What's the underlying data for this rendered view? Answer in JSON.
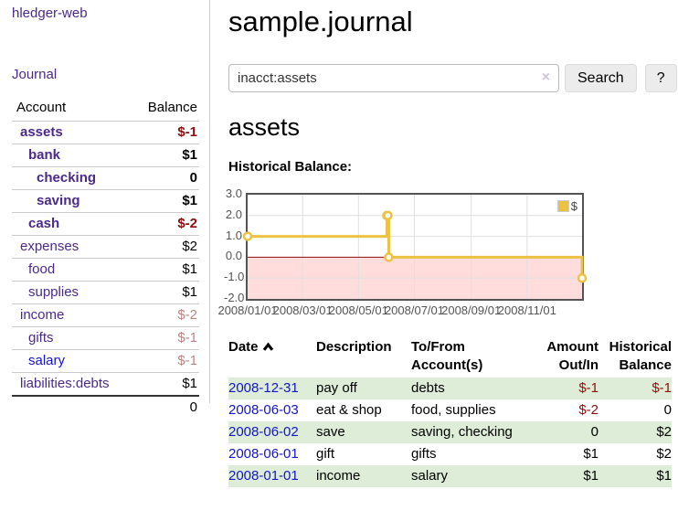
{
  "page": {
    "title": "sample.journal"
  },
  "sidebar": {
    "brand": "hledger-web",
    "journal_link": "Journal",
    "accounts": {
      "headers": {
        "account": "Account",
        "balance": "Balance"
      },
      "rows": [
        {
          "name": "assets",
          "depth": 1,
          "selected": true,
          "balance": "$-1",
          "neg": "strong"
        },
        {
          "name": "bank",
          "depth": 2,
          "selected": true,
          "balance": "$1",
          "neg": "none"
        },
        {
          "name": "checking",
          "depth": 3,
          "selected": true,
          "balance": "0",
          "neg": "none"
        },
        {
          "name": "saving",
          "depth": 3,
          "selected": true,
          "balance": "$1",
          "neg": "none"
        },
        {
          "name": "cash",
          "depth": 2,
          "selected": true,
          "balance": "$-2",
          "neg": "strong"
        },
        {
          "name": "expenses",
          "depth": 1,
          "selected": false,
          "balance": "$2",
          "neg": "none"
        },
        {
          "name": "food",
          "depth": 2,
          "selected": false,
          "balance": "$1",
          "neg": "none"
        },
        {
          "name": "supplies",
          "depth": 2,
          "selected": false,
          "balance": "$1",
          "neg": "none"
        },
        {
          "name": "income",
          "depth": 1,
          "selected": false,
          "balance": "$-2",
          "neg": "faded"
        },
        {
          "name": "gifts",
          "depth": 2,
          "selected": false,
          "balance": "$-1",
          "neg": "faded"
        },
        {
          "name": "salary",
          "depth": 2,
          "selected": false,
          "balance": "$-1",
          "neg": "faded",
          "unvisited": true
        },
        {
          "name": "liabilities:debts",
          "depth": 1,
          "selected": false,
          "balance": "$1",
          "neg": "none"
        }
      ],
      "total": "0"
    }
  },
  "search": {
    "value": "inacct:assets",
    "clear_icon": "×",
    "button": "Search",
    "help_button": "?"
  },
  "main": {
    "account_heading": "assets",
    "chart_heading": "Historical Balance:"
  },
  "chart_data": {
    "type": "line",
    "title": "Historical Balance:",
    "step": true,
    "x_range": [
      "2008-01-01",
      "2008-12-31"
    ],
    "x_ticks": [
      "2008/01/01",
      "2008/03/01",
      "2008/05/01",
      "2008/07/01",
      "2008/09/01",
      "2008/11/01"
    ],
    "y_ticks": [
      "3.0",
      "2.0",
      "1.0",
      "0.0",
      "-1.0",
      "-2.0"
    ],
    "ylim": [
      -2,
      3
    ],
    "series": [
      {
        "name": "$",
        "color": "#edc240",
        "points": [
          [
            "2008-01-01",
            1
          ],
          [
            "2008-06-01",
            2
          ],
          [
            "2008-06-02",
            2
          ],
          [
            "2008-06-03",
            0
          ],
          [
            "2008-12-31",
            -1
          ]
        ]
      }
    ],
    "legend": {
      "label": "$",
      "position": "top-right"
    },
    "grid": true
  },
  "register": {
    "headers": {
      "date": "Date",
      "sort": "ascending",
      "description": "Description",
      "accounts": "To/From Account(s)",
      "amount": "Amount Out/In",
      "balance": "Historical Balance"
    },
    "rows": [
      {
        "date": "2008-12-31",
        "description": "pay off",
        "accounts": "debts",
        "amount": "$-1",
        "amount_neg": true,
        "balance": "$-1",
        "balance_neg": true
      },
      {
        "date": "2008-06-03",
        "description": "eat & shop",
        "accounts": "food, supplies",
        "amount": "$-2",
        "amount_neg": true,
        "balance": "0",
        "balance_neg": false
      },
      {
        "date": "2008-06-02",
        "description": "save",
        "accounts": "saving, checking",
        "amount": "0",
        "amount_neg": false,
        "balance": "$2",
        "balance_neg": false
      },
      {
        "date": "2008-06-01",
        "description": "gift",
        "accounts": "gifts",
        "amount": "$1",
        "amount_neg": false,
        "balance": "$2",
        "balance_neg": false
      },
      {
        "date": "2008-01-01",
        "description": "income",
        "accounts": "salary",
        "amount": "$1",
        "amount_neg": false,
        "balance": "$1",
        "balance_neg": false
      }
    ]
  },
  "colors": {
    "link_purple": "#4b2a8a",
    "link_blue": "#1414cc",
    "negative": "#8b0f0f",
    "negative_faded": "#bd8484",
    "row_stripe_green": "#ddedd8",
    "chart_line": "#edc240",
    "chart_negative_fill": "#ffdddd",
    "chart_zero_line": "#8d0e0e",
    "chart_grid": "#e0e0e0",
    "chart_border": "#545454",
    "chart_tick_text": "#545454"
  }
}
